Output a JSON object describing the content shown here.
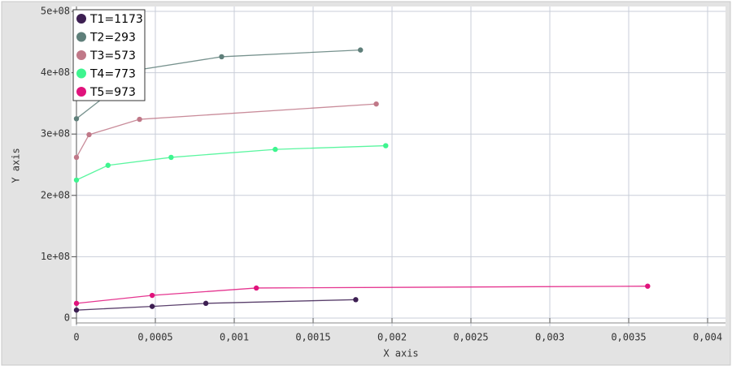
{
  "chart_data": {
    "type": "line",
    "xlabel": "X axis",
    "ylabel": "Y axis",
    "xlim": [
      0,
      0.004
    ],
    "ylim": [
      0,
      500000000
    ],
    "xticks": [
      0,
      {
        "value": 0.0005,
        "label": "0,0005"
      },
      {
        "value": 0.001,
        "label": "0,001"
      },
      {
        "value": 0.0015,
        "label": "0,0015"
      },
      {
        "value": 0.002,
        "label": "0,002"
      },
      {
        "value": 0.0025,
        "label": "0,0025"
      },
      {
        "value": 0.003,
        "label": "0,003"
      },
      {
        "value": 0.0035,
        "label": "0,0035"
      },
      {
        "value": 0.004,
        "label": "0,004"
      }
    ],
    "yticks": [
      0,
      {
        "value": 100000000,
        "label": "1e+08"
      },
      {
        "value": 200000000,
        "label": "2e+08"
      },
      {
        "value": 300000000,
        "label": "3e+08"
      },
      {
        "value": 400000000,
        "label": "4e+08"
      },
      {
        "value": 500000000,
        "label": "5e+08"
      }
    ],
    "grid": true,
    "legend": "top-left",
    "series": [
      {
        "name": "T1=1173",
        "color": "#3d1f52",
        "x": [
          0,
          0.00048,
          0.00082,
          0.00177
        ],
        "values": [
          13000000,
          19000000,
          24000000,
          30000000
        ]
      },
      {
        "name": "T2=293",
        "color": "#5f7f7a",
        "x": [
          0,
          0.0004,
          0.00092,
          0.0018
        ],
        "values": [
          325000000,
          405000000,
          426000000,
          437000000
        ]
      },
      {
        "name": "T3=573",
        "color": "#c07888",
        "x": [
          0,
          8e-05,
          0.0004,
          0.0019
        ],
        "values": [
          262000000,
          299000000,
          324000000,
          349000000
        ]
      },
      {
        "name": "T4=773",
        "color": "#3ef58f",
        "x": [
          0,
          0.0002,
          0.0006,
          0.00126,
          0.00196
        ],
        "values": [
          225000000,
          249000000,
          262000000,
          275000000,
          281000000
        ]
      },
      {
        "name": "T5=973",
        "color": "#e0137c",
        "x": [
          0,
          0.00048,
          0.00114,
          0.00362
        ],
        "values": [
          24000000,
          37000000,
          49000000,
          52000000
        ]
      }
    ]
  }
}
